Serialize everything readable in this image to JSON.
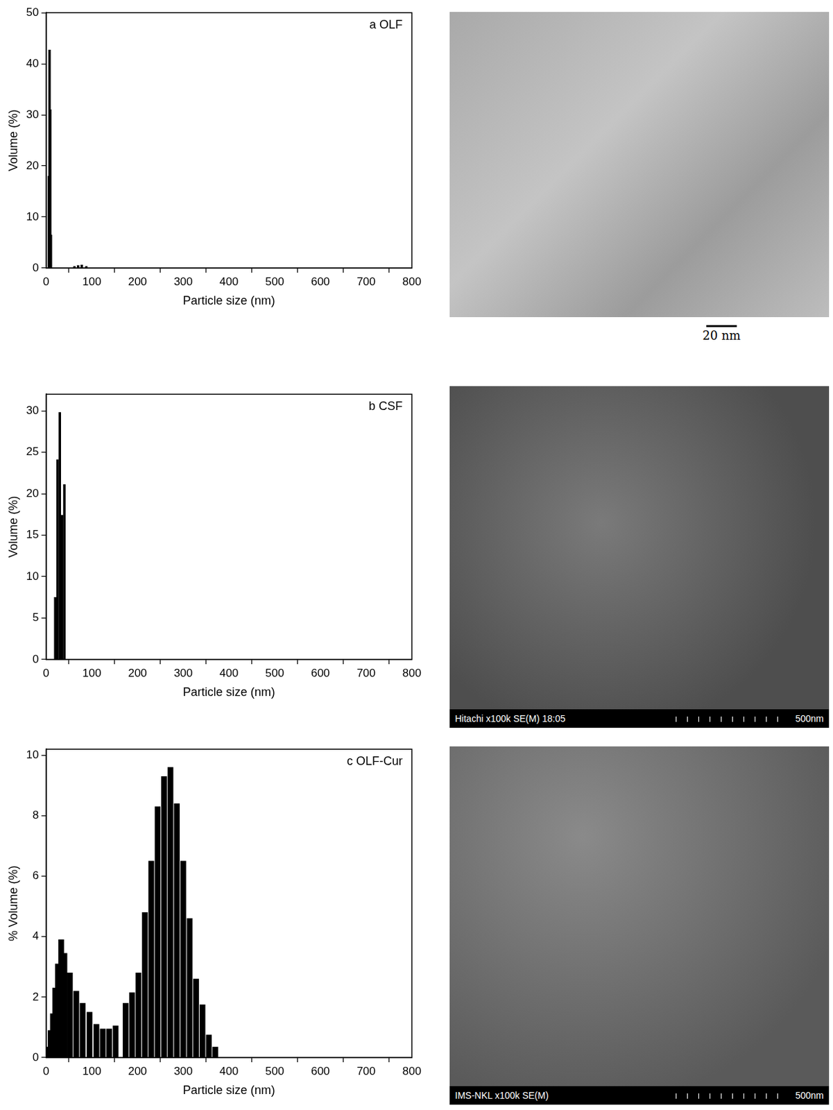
{
  "chart_data": [
    {
      "type": "bar",
      "title": "a OLF",
      "x_label": "Particle size (nm)",
      "y_label": "Volume (%)",
      "x": [
        6,
        7.5,
        9,
        10.5,
        62,
        70,
        78,
        88
      ],
      "values": [
        18,
        42.7,
        31,
        6.5,
        0.3,
        0.5,
        0.6,
        0.3
      ],
      "color": "#000000",
      "xlim": [
        0,
        800
      ],
      "xticks": [
        0,
        100,
        200,
        300,
        400,
        500,
        600,
        700,
        800
      ],
      "ylim": [
        0,
        50
      ],
      "yticks": [
        0,
        10,
        20,
        30,
        40,
        50
      ],
      "grid": false
    },
    {
      "type": "bar",
      "title": "b CSF",
      "x_label": "Particle size (nm)",
      "y_label": "Volume (%)",
      "x": [
        20,
        25,
        30,
        35,
        40
      ],
      "values": [
        7.5,
        24.1,
        29.8,
        17.4,
        21.1
      ],
      "color": "#000000",
      "xlim": [
        0,
        800
      ],
      "xticks": [
        0,
        100,
        200,
        300,
        400,
        500,
        600,
        700,
        800
      ],
      "ylim": [
        0,
        32
      ],
      "yticks": [
        0,
        5,
        10,
        15,
        20,
        25,
        30
      ],
      "grid": false
    },
    {
      "type": "bar",
      "title": "c OLF-Cur",
      "x_label": "Particle size (nm)",
      "y_label": "% Volume (%)",
      "x": [
        5,
        10,
        15,
        20,
        26,
        33,
        40,
        52,
        66,
        80,
        95,
        110,
        124,
        138,
        152,
        174,
        188,
        202,
        216,
        230,
        244,
        258,
        272,
        286,
        300,
        314,
        328,
        342,
        356,
        370
      ],
      "values": [
        0.35,
        0.9,
        1.45,
        2.3,
        3.1,
        3.9,
        3.45,
        2.8,
        2.2,
        1.8,
        1.5,
        1.1,
        0.95,
        0.95,
        1.05,
        1.8,
        2.15,
        2.8,
        4.8,
        6.5,
        8.3,
        9.3,
        9.6,
        8.4,
        6.5,
        4.6,
        2.6,
        1.75,
        0.75,
        0.35
      ],
      "color": "#000000",
      "xlim": [
        0,
        800
      ],
      "xticks": [
        0,
        100,
        200,
        300,
        400,
        500,
        600,
        700,
        800
      ],
      "ylim": [
        0,
        10.2
      ],
      "yticks": [
        0,
        2,
        4,
        6,
        8,
        10
      ],
      "grid": false
    }
  ],
  "images": [
    {
      "scale_bar": "20 nm"
    },
    {
      "caption": "Hitachi x100k SE(M) 18:05",
      "scale_bar": "500nm"
    },
    {
      "caption": "IMS-NKL x100k SE(M)",
      "scale_bar": "500nm"
    }
  ]
}
